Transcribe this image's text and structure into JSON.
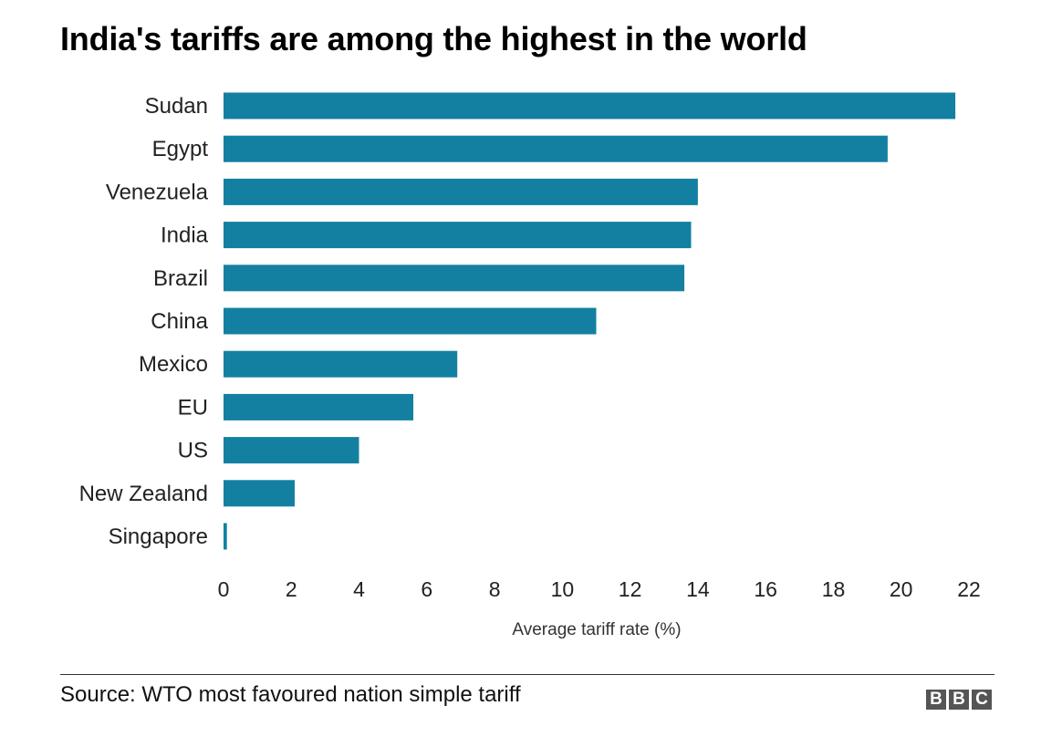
{
  "title": "India's tariffs are among the highest in the world",
  "source": "Source: WTO most favoured nation simple tariff",
  "logo": {
    "letters": [
      "B",
      "B",
      "C"
    ]
  },
  "colors": {
    "bar": "#1380a1",
    "axis": "#333333",
    "text": "#222222"
  },
  "chart_data": {
    "type": "bar",
    "orientation": "horizontal",
    "categories": [
      "Sudan",
      "Egypt",
      "Venezuela",
      "India",
      "Brazil",
      "China",
      "Mexico",
      "EU",
      "US",
      "New Zealand",
      "Singapore"
    ],
    "values": [
      21.6,
      19.6,
      14.0,
      13.8,
      13.6,
      11.0,
      6.9,
      5.6,
      4.0,
      2.1,
      0.1
    ],
    "xlabel": "Average tariff rate (%)",
    "ylabel": "",
    "xlim": [
      0,
      22
    ],
    "xticks": [
      0,
      2,
      4,
      6,
      8,
      10,
      12,
      14,
      16,
      18,
      20,
      22
    ],
    "grid": false,
    "legend": "none"
  }
}
